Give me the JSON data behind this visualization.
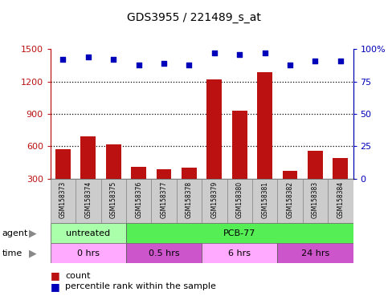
{
  "title": "GDS3955 / 221489_s_at",
  "samples": [
    "GSM158373",
    "GSM158374",
    "GSM158375",
    "GSM158376",
    "GSM158377",
    "GSM158378",
    "GSM158379",
    "GSM158380",
    "GSM158381",
    "GSM158382",
    "GSM158383",
    "GSM158384"
  ],
  "counts": [
    570,
    690,
    620,
    410,
    390,
    400,
    1220,
    930,
    1290,
    375,
    555,
    490
  ],
  "percentile_ranks": [
    92,
    94,
    92,
    88,
    89,
    88,
    97,
    96,
    97,
    88,
    91,
    91
  ],
  "ylim_left": [
    300,
    1500
  ],
  "ylim_right": [
    0,
    100
  ],
  "yticks_left": [
    300,
    600,
    900,
    1200,
    1500
  ],
  "yticks_right": [
    0,
    25,
    50,
    75,
    100
  ],
  "bar_color": "#bb1111",
  "scatter_color": "#0000bb",
  "agent_labels": [
    {
      "text": "untreated",
      "start": 0,
      "end": 3,
      "color": "#aaffaa"
    },
    {
      "text": "PCB-77",
      "start": 3,
      "end": 12,
      "color": "#55ee55"
    }
  ],
  "time_labels": [
    {
      "text": "0 hrs",
      "start": 0,
      "end": 3,
      "color": "#ffaaff"
    },
    {
      "text": "0.5 hrs",
      "start": 3,
      "end": 6,
      "color": "#cc55cc"
    },
    {
      "text": "6 hrs",
      "start": 6,
      "end": 9,
      "color": "#ffaaff"
    },
    {
      "text": "24 hrs",
      "start": 9,
      "end": 12,
      "color": "#cc55cc"
    }
  ],
  "sample_bg_color": "#cccccc",
  "legend_count_color": "#bb1111",
  "legend_percentile_color": "#0000bb"
}
